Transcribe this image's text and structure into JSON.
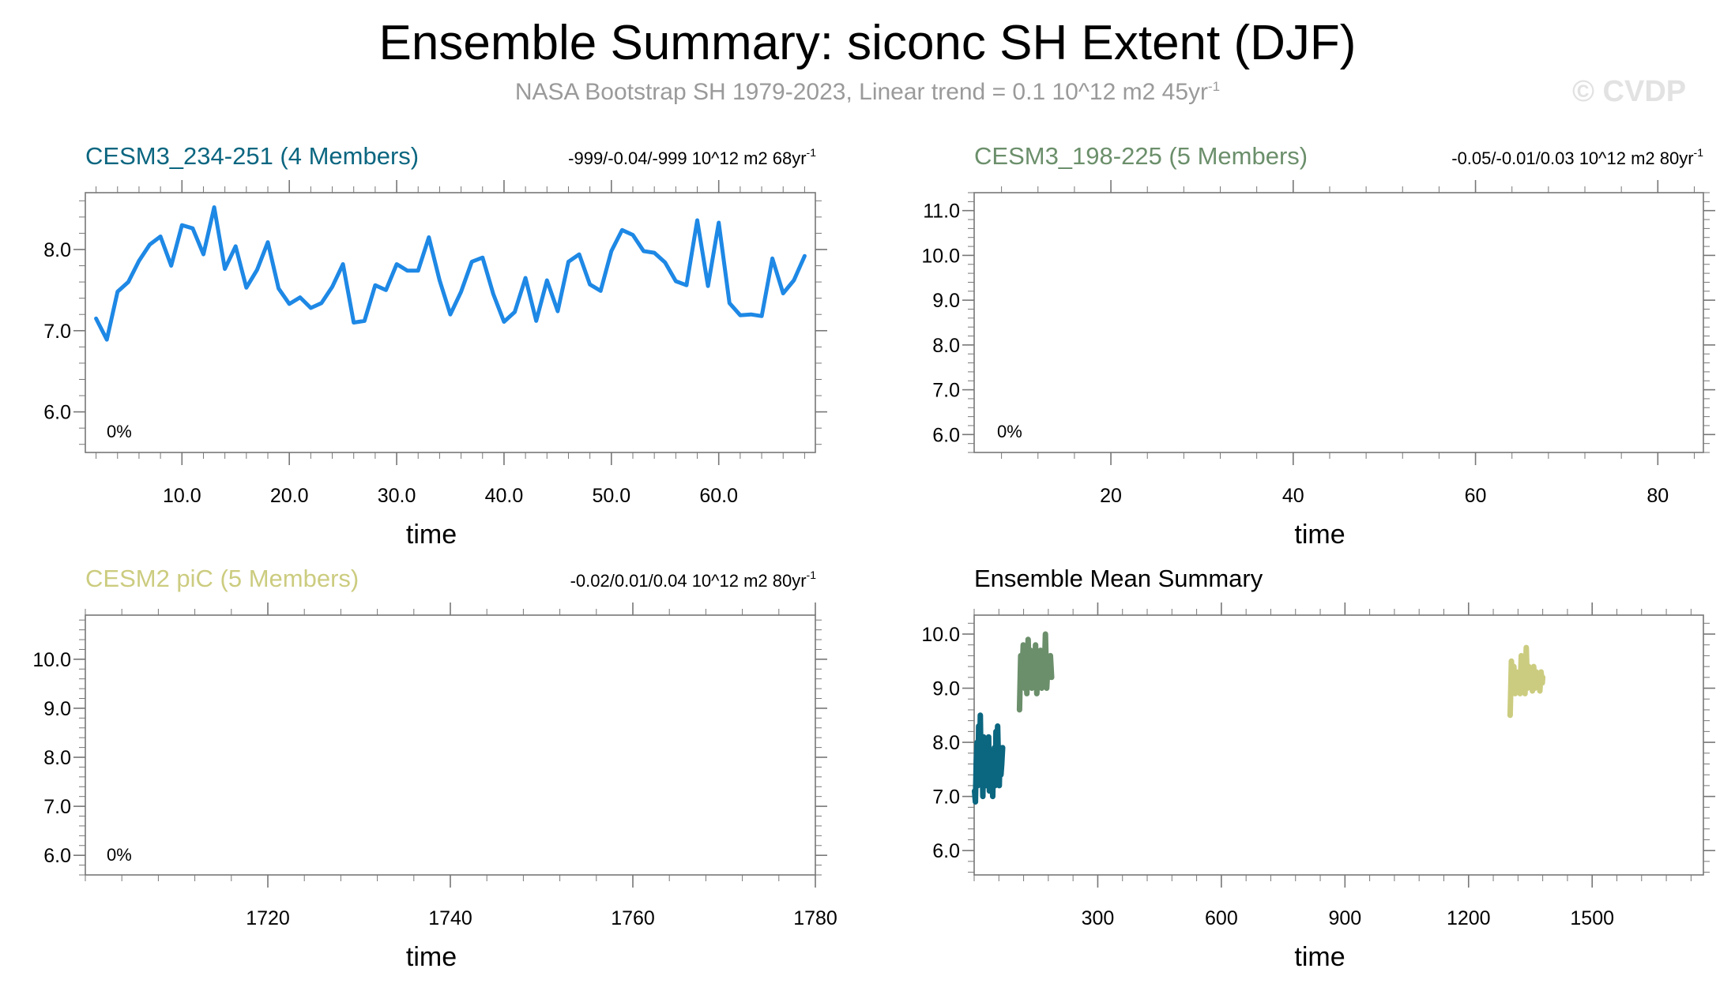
{
  "title": "Ensemble Summary: siconc SH Extent (DJF)",
  "subtitle": {
    "text": "NASA Bootstrap SH 1979-2023, Linear trend = 0.1 10^12 m2 45yr",
    "superscript": "-1"
  },
  "watermark": "© CVDP",
  "colors": {
    "cesm3_234_251": "#0b6680",
    "cesm3_198_225": "#6b8f6b",
    "cesm2_pic": "#cccc80",
    "obs_line": "#1e88e5",
    "axis": "#777777"
  },
  "chart_data": [
    {
      "id": "p1",
      "type": "line",
      "title": "CESM3_234-251 (4 Members)",
      "title_color": "#0b6680",
      "stats": "-999/-0.04/-999 10^12 m2 68yr",
      "stats_sup": "-1",
      "percent_label": "0%",
      "xlabel": "time",
      "xlim": [
        1,
        69
      ],
      "ylim": [
        5.5,
        8.7
      ],
      "xticks": [
        10,
        20,
        30,
        40,
        50,
        60
      ],
      "xtick_labels": [
        "10.0",
        "20.0",
        "30.0",
        "40.0",
        "50.0",
        "60.0"
      ],
      "yticks": [
        6,
        7,
        8
      ],
      "ytick_labels": [
        "6.0",
        "7.0",
        "8.0"
      ],
      "series": [
        {
          "name": "CESM3_234-251 ensemble mean",
          "color": "#1e88e5",
          "x": [
            2,
            3,
            4,
            5,
            6,
            7,
            8,
            9,
            10,
            11,
            12,
            13,
            14,
            15,
            16,
            17,
            18,
            19,
            20,
            21,
            22,
            23,
            24,
            25,
            26,
            27,
            28,
            29,
            30,
            31,
            32,
            33,
            34,
            35,
            36,
            37,
            38,
            39,
            40,
            41,
            42,
            43,
            44,
            45,
            46,
            47,
            48,
            49,
            50,
            51,
            52,
            53,
            54,
            55,
            56,
            57,
            58,
            59,
            60,
            61,
            62,
            63,
            64,
            65,
            66,
            67,
            68
          ],
          "values": [
            7.15,
            6.89,
            7.48,
            7.6,
            7.86,
            8.06,
            8.16,
            7.8,
            8.3,
            8.26,
            7.94,
            8.52,
            7.76,
            8.04,
            7.53,
            7.75,
            8.09,
            7.52,
            7.33,
            7.41,
            7.28,
            7.34,
            7.54,
            7.82,
            7.1,
            7.12,
            7.56,
            7.5,
            7.82,
            7.74,
            7.74,
            8.15,
            7.62,
            7.2,
            7.48,
            7.85,
            7.9,
            7.45,
            7.11,
            7.23,
            7.65,
            7.12,
            7.62,
            7.24,
            7.85,
            7.94,
            7.57,
            7.49,
            7.98,
            8.24,
            8.18,
            7.98,
            7.96,
            7.84,
            7.61,
            7.56,
            8.36,
            7.55,
            8.33,
            7.34,
            7.19,
            7.2,
            7.18,
            7.89,
            7.46,
            7.62,
            7.92
          ]
        }
      ]
    },
    {
      "id": "p2",
      "type": "line",
      "title": "CESM3_198-225 (5 Members)",
      "title_color": "#6b8f6b",
      "stats": "-0.05/-0.01/0.03 10^12 m2 80yr",
      "stats_sup": "-1",
      "percent_label": "0%",
      "xlabel": "time",
      "xlim": [
        5,
        85
      ],
      "ylim": [
        5.6,
        11.4
      ],
      "xticks": [
        20,
        40,
        60,
        80
      ],
      "xtick_labels": [
        "20",
        "40",
        "60",
        "80"
      ],
      "yticks": [
        6,
        7,
        8,
        9,
        10,
        11
      ],
      "ytick_labels": [
        "6.0",
        "7.0",
        "8.0",
        "9.0",
        "10.0",
        "11.0"
      ],
      "series": []
    },
    {
      "id": "p3",
      "type": "line",
      "title": "CESM2 piC (5 Members)",
      "title_color": "#cccc80",
      "stats": "-0.02/0.01/0.04 10^12 m2 80yr",
      "stats_sup": "-1",
      "percent_label": "0%",
      "xlabel": "time",
      "xlim": [
        1700,
        1780
      ],
      "ylim": [
        5.6,
        10.9
      ],
      "xticks": [
        1720,
        1740,
        1760,
        1780
      ],
      "xtick_labels": [
        "1720",
        "1740",
        "1760",
        "1780"
      ],
      "yticks": [
        6,
        7,
        8,
        9,
        10
      ],
      "ytick_labels": [
        "6.0",
        "7.0",
        "8.0",
        "9.0",
        "10.0"
      ],
      "series": []
    },
    {
      "id": "p4",
      "type": "line",
      "title": "Ensemble Mean Summary",
      "title_color": "#000000",
      "xlabel": "time",
      "xlim": [
        0,
        1770
      ],
      "ylim": [
        5.55,
        10.35
      ],
      "xticks": [
        300,
        600,
        900,
        1200,
        1500
      ],
      "xtick_labels": [
        "300",
        "600",
        "900",
        "1200",
        "1500"
      ],
      "yticks": [
        6,
        7,
        8,
        9,
        10
      ],
      "ytick_labels": [
        "6.0",
        "7.0",
        "8.0",
        "9.0",
        "10.0"
      ],
      "series": [
        {
          "name": "CESM3_234-251",
          "color": "#0b6680",
          "x": [
            1,
            3,
            5,
            7,
            9,
            11,
            13,
            15,
            17,
            19,
            21,
            23,
            25,
            27,
            29,
            31,
            33,
            35,
            37,
            39,
            41,
            43,
            45,
            47,
            49,
            51,
            53,
            55,
            57,
            59,
            61,
            63,
            65,
            67,
            69
          ],
          "values": [
            7.1,
            6.9,
            7.6,
            8.0,
            7.2,
            8.3,
            7.5,
            8.5,
            7.3,
            7.9,
            7.0,
            8.1,
            7.4,
            7.8,
            7.2,
            7.9,
            7.5,
            8.1,
            7.1,
            7.8,
            7.3,
            7.6,
            7.0,
            7.7,
            7.9,
            7.2,
            8.2,
            7.4,
            8.3,
            7.6,
            7.2,
            7.9,
            7.4,
            7.6,
            7.9
          ]
        },
        {
          "name": "CESM3_198-225",
          "color": "#6b8f6b",
          "x": [
            110,
            113,
            116,
            119,
            122,
            125,
            128,
            131,
            134,
            137,
            140,
            143,
            146,
            149,
            152,
            155,
            158,
            161,
            164,
            167,
            170,
            173,
            176,
            179,
            182,
            185,
            188
          ],
          "values": [
            8.6,
            9.6,
            9.1,
            9.8,
            9.0,
            9.5,
            8.9,
            9.9,
            9.2,
            9.7,
            9.0,
            9.6,
            9.1,
            9.8,
            8.9,
            9.4,
            9.2,
            9.7,
            9.0,
            9.5,
            9.1,
            10.0,
            9.0,
            9.4,
            9.2,
            9.6,
            9.2
          ]
        },
        {
          "name": "CESM2 piC",
          "color": "#cccc80",
          "x": [
            1301,
            1304,
            1307,
            1310,
            1313,
            1316,
            1319,
            1322,
            1325,
            1328,
            1331,
            1334,
            1337,
            1340,
            1343,
            1346,
            1349,
            1352,
            1355,
            1358,
            1361,
            1364,
            1367,
            1370,
            1373,
            1376,
            1379,
            1380
          ],
          "values": [
            8.5,
            9.5,
            9.0,
            9.4,
            8.9,
            9.3,
            9.1,
            9.2,
            8.9,
            9.6,
            9.0,
            9.3,
            8.9,
            9.75,
            9.0,
            9.4,
            9.1,
            9.2,
            8.95,
            9.4,
            9.0,
            9.3,
            9.1,
            9.25,
            8.95,
            9.3,
            9.1,
            9.2
          ]
        }
      ]
    }
  ]
}
